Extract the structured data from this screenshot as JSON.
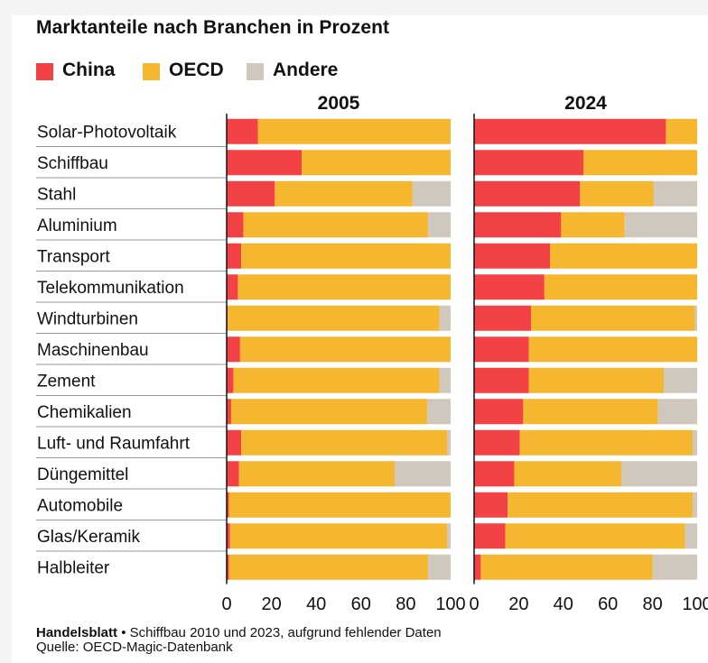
{
  "header": {
    "title": "Marktanteile nach Branchen in Prozent"
  },
  "legend": [
    {
      "label": "China",
      "color": "#f24245"
    },
    {
      "label": "OECD",
      "color": "#f5b72f"
    },
    {
      "label": "Andere",
      "color": "#d0c7bd"
    }
  ],
  "footer": {
    "brand": "Handelsblatt",
    "separator": "•",
    "note": "Schiffbau 2010 und 2023, aufgrund fehlender Daten",
    "source": "Quelle: OECD-Magic-Datenbank"
  },
  "chart_data": {
    "type": "bar",
    "orientation": "horizontal",
    "stacked": true,
    "title": "Marktanteile nach Branchen in Prozent",
    "xlim": [
      0,
      100
    ],
    "xticks": [
      0,
      20,
      40,
      60,
      80,
      100
    ],
    "legend_placement": "top-left",
    "categories": [
      "Solar-Photovoltaik",
      "Schiffbau",
      "Stahl",
      "Aluminium",
      "Transport",
      "Telekommunikation",
      "Windturbinen",
      "Maschinenbau",
      "Zement",
      "Chemikalien",
      "Luft- und Raumfahrt",
      "Düngemittel",
      "Automobile",
      "Glas/Keramik",
      "Halbleiter"
    ],
    "panels": [
      {
        "title": "2005",
        "series": [
          {
            "name": "China",
            "values": [
              14,
              33.5,
              21.5,
              7.5,
              6.5,
              5,
              0.5,
              6,
              3,
              2,
              6.5,
              5.5,
              1,
              1.5,
              1
            ]
          },
          {
            "name": "OECD",
            "values": [
              86,
              66.5,
              61.5,
              82.5,
              93.5,
              95,
              94.5,
              94,
              92,
              87.5,
              92,
              69.5,
              99,
              97,
              89
            ]
          },
          {
            "name": "Andere",
            "values": [
              0,
              0,
              17,
              10,
              0,
              0,
              5,
              0,
              5,
              10.5,
              1.5,
              25,
              0,
              1.5,
              10
            ]
          }
        ]
      },
      {
        "title": "2024",
        "series": [
          {
            "name": "China",
            "values": [
              86,
              49,
              47.5,
              39,
              34,
              31.5,
              25.5,
              24.5,
              24.5,
              22,
              20.5,
              18,
              15,
              14,
              3
            ]
          },
          {
            "name": "OECD",
            "values": [
              14,
              51,
              33,
              28.5,
              66,
              68.5,
              73.5,
              75.5,
              60.5,
              60.5,
              77.5,
              48,
              83,
              80.5,
              77
            ]
          },
          {
            "name": "Andere",
            "values": [
              0,
              0,
              19.5,
              32.5,
              0,
              0,
              1,
              0,
              15,
              17.5,
              2,
              34,
              2,
              5.5,
              20
            ]
          }
        ]
      }
    ]
  }
}
